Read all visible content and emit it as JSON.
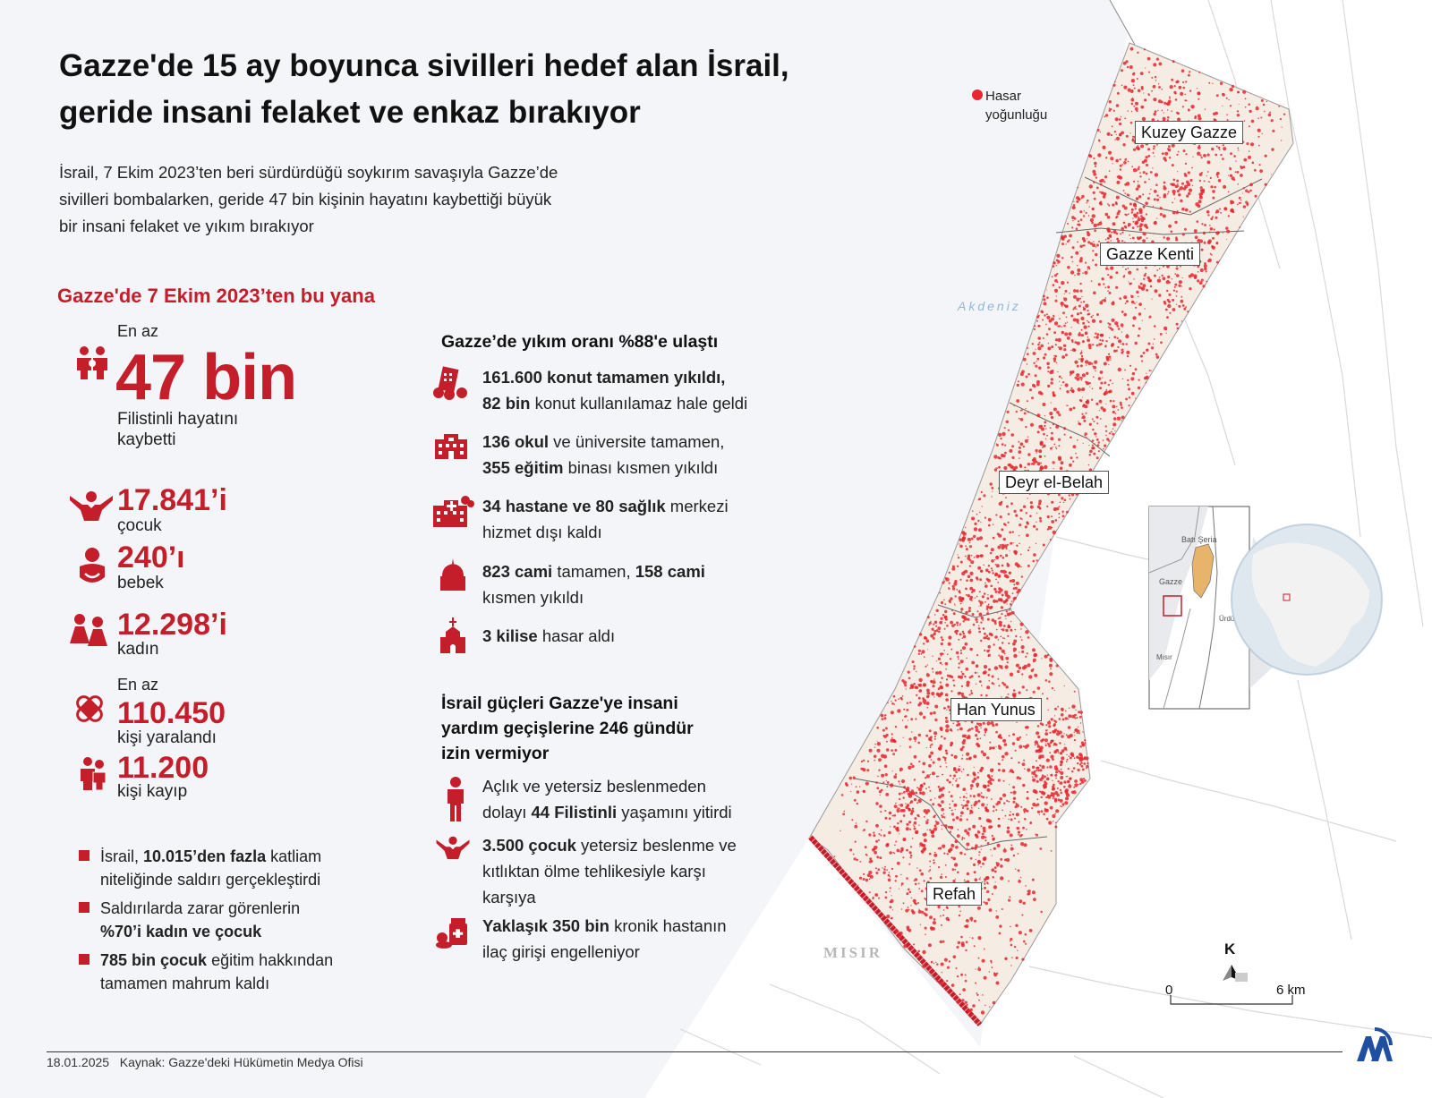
{
  "title_line1": "Gazze'de 15 ay boyunca sivilleri hedef alan İsrail,",
  "title_line2": "geride insani felaket ve enkaz bırakıyor",
  "intro": {
    "line1": "İsrail, 7 Ekim 2023’ten beri sürdürdüğü soykırım savaşıyla Gazze’de",
    "line2": "sivilleri bombalarken, geride 47 bin kişinin hayatını kaybettiği büyük",
    "line3": "bir insani felaket ve yıkım bırakıyor"
  },
  "section_title": "Gazze'de 7 Ekim 2023’ten bu yana",
  "stats": {
    "deaths": {
      "prefix": "En az",
      "value": "47 bin",
      "label1": "Filistinli hayatını",
      "label2": "kaybetti"
    },
    "children": {
      "value": "17.841’i",
      "label": "çocuk"
    },
    "babies": {
      "value": "240’ı",
      "label": "bebek"
    },
    "women": {
      "value": "12.298’i",
      "label": "kadın"
    },
    "injured": {
      "prefix": "En az",
      "value": "110.450",
      "label": "kişi yaralandı"
    },
    "missing": {
      "value": "11.200",
      "label": "kişi kayıp"
    }
  },
  "bullets": [
    {
      "pre": "İsrail, ",
      "bold": "10.015’den fazla",
      "post": " katliam",
      "line2": "niteliğinde saldırı gerçekleştirdi"
    },
    {
      "pre": "Saldırılarda zarar görenlerin",
      "bold": "%70’i kadın ve çocuk",
      "post": "",
      "line2": ""
    },
    {
      "pre": "",
      "bold": "785 bin çocuk",
      "post": " eğitim hakkından",
      "line2": "tamamen mahrum kaldı"
    }
  ],
  "destruction": {
    "title": "Gazze’de yıkım oranı %88'e ulaştı",
    "items": [
      {
        "b1": "161.600 konut tamamen yıkıldı,",
        "t1": "",
        "b2": "82 bin",
        "t2": " konut kullanılamaz hale geldi"
      },
      {
        "b1": "136 okul",
        "t1": " ve üniversite tamamen,",
        "b2": "355 eğitim",
        "t2": " binası kısmen yıkıldı"
      },
      {
        "b1": "34 hastane ve 80 sağlık",
        "t1": " merkezi",
        "b2": "",
        "t2": "hizmet dışı kaldı"
      },
      {
        "b1": "823 cami",
        "t1": " tamamen, ",
        "b1b": "158 cami",
        "b2": "",
        "t2": "kısmen yıkıldı"
      },
      {
        "b1": "3 kilise",
        "t1": " hasar aldı",
        "b2": "",
        "t2": ""
      }
    ]
  },
  "aid": {
    "title1": "İsrail güçleri Gazze'ye insani",
    "title2": "yardım geçişlerine 246 gündür",
    "title3": "izin vermiyor",
    "items": [
      {
        "l1": "Açlık ve yetersiz beslenmeden",
        "l2pre": "dolayı ",
        "l2b": "44 Filistinli",
        "l2post": " yaşamını yitirdi",
        "l3": ""
      },
      {
        "l1b": "3.500 çocuk",
        "l1": " yetersiz beslenme ve",
        "l2pre": "kıtlıktan ölme tehlikesiyle karşı",
        "l2b": "",
        "l2post": "",
        "l3": "karşıya"
      },
      {
        "l1b": "Yaklaşık 350 bin",
        "l1": " kronik hastanın",
        "l2pre": "ilaç girişi engelleniyor",
        "l2b": "",
        "l2post": "",
        "l3": ""
      }
    ]
  },
  "map": {
    "legend": "Hasar",
    "legend2": "yoğunluğu",
    "sea": "Akdeniz",
    "egypt": "MISIR",
    "regions": [
      "Kuzey Gazze",
      "Gazze Kenti",
      "Deyr el-Belah",
      "Han Yunus",
      "Refah"
    ],
    "inset": {
      "westbank": "Batı Şeria",
      "gaza": "Gazze",
      "jordan": "Ürdün",
      "egypt": "Mısır"
    },
    "north": "K",
    "scale_start": "0",
    "scale_end": "6 km",
    "damage_color": "#e8262f"
  },
  "footer": {
    "date": "18.01.2025",
    "source": "Kaynak: Gazze'deki Hükümetin Medya Ofisi"
  },
  "logo": "AA"
}
